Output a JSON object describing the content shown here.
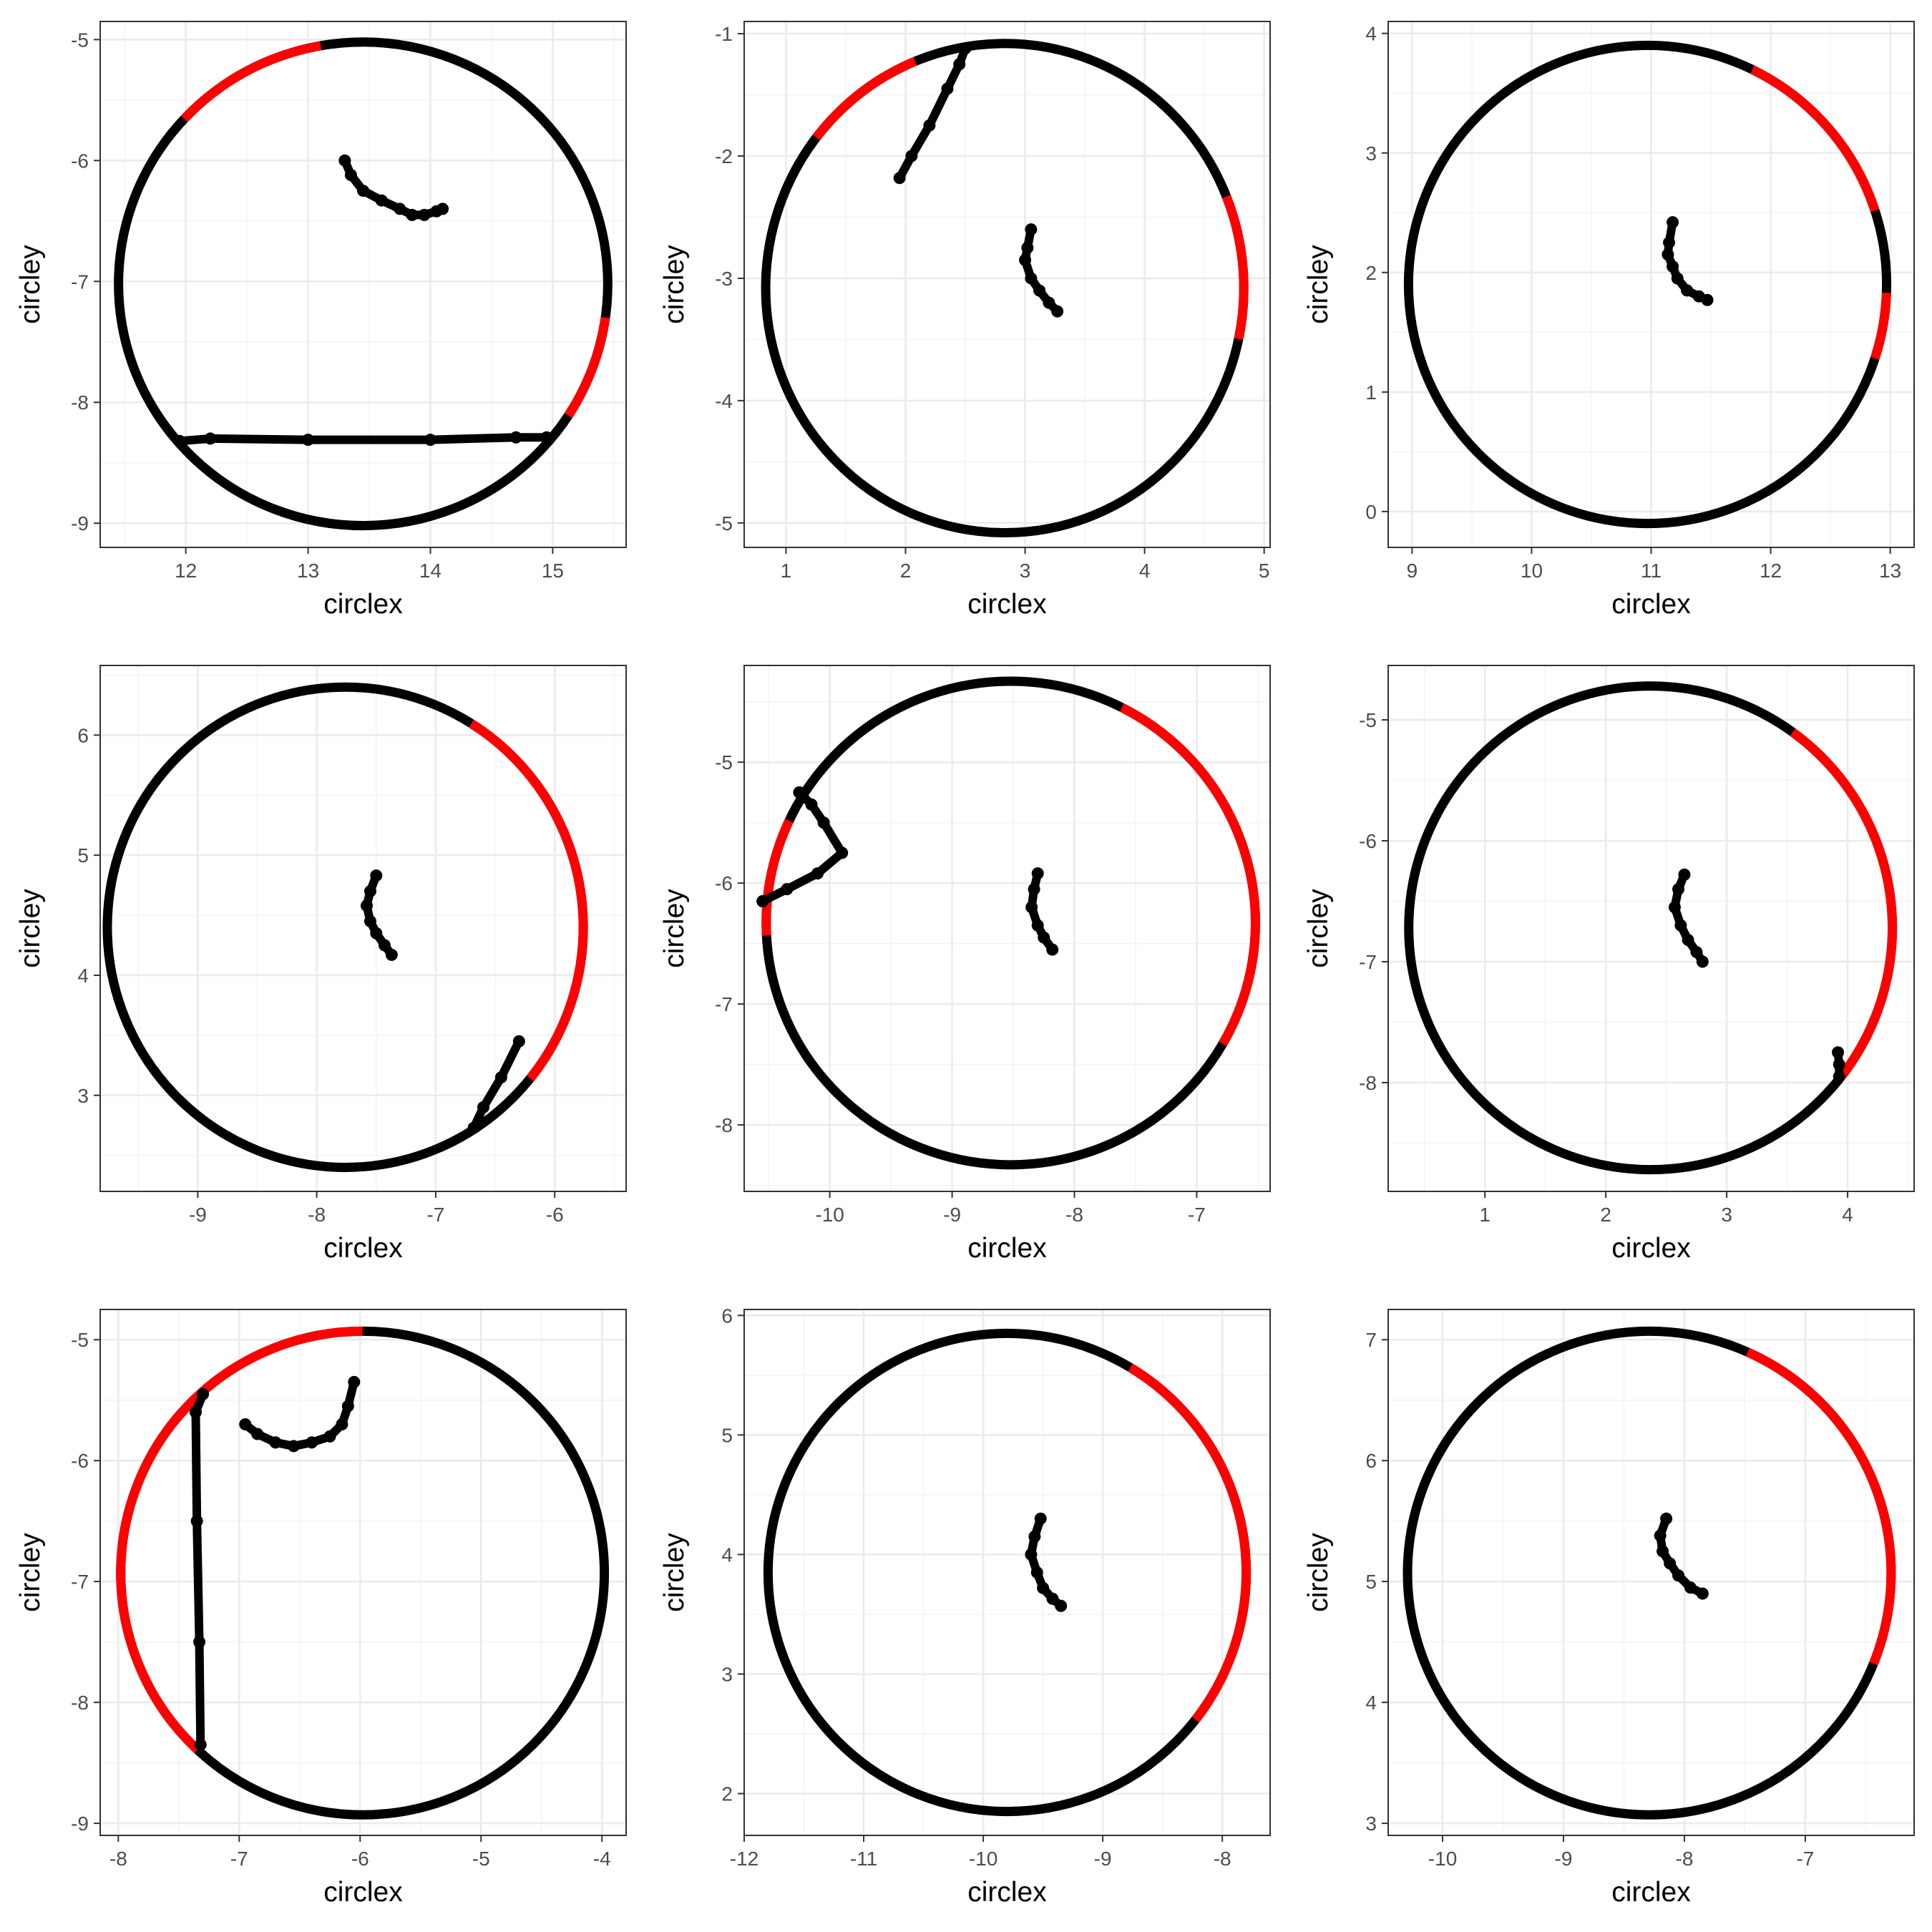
{
  "colors": {
    "arc_default": "#000000",
    "arc_highlight": "#ff0000",
    "path": "#000000",
    "grid_major": "#ebebeb",
    "grid_minor": "#f3f3f3",
    "border": "#333333"
  },
  "chart_data": [
    {
      "type": "scatter",
      "xlabel": "circlex",
      "ylabel": "circley",
      "center": [
        13.45,
        -7.02
      ],
      "radius": 2.0,
      "highlight_arc_deg": [
        [
          -33,
          -8
        ],
        [
          100,
          137
        ]
      ],
      "xlim": [
        11.3,
        15.6
      ],
      "ylim": [
        -9.2,
        -4.85
      ],
      "xticks": [
        12,
        13,
        14,
        15
      ],
      "yticks": [
        -9,
        -8,
        -7,
        -6,
        -5
      ],
      "xtick_labels": [
        "12",
        "13",
        "14",
        "15"
      ],
      "ytick_labels": [
        "-9",
        "-8",
        "-7",
        "-6",
        "-5"
      ],
      "paths": [
        [
          [
            13.3,
            -6.0
          ],
          [
            13.35,
            -6.12
          ],
          [
            13.45,
            -6.25
          ],
          [
            13.6,
            -6.33
          ],
          [
            13.75,
            -6.4
          ],
          [
            13.85,
            -6.45
          ],
          [
            13.95,
            -6.45
          ],
          [
            14.05,
            -6.42
          ],
          [
            14.1,
            -6.4
          ]
        ],
        [
          [
            11.95,
            -8.32
          ],
          [
            12.2,
            -8.3
          ],
          [
            13.0,
            -8.31
          ],
          [
            14.0,
            -8.31
          ],
          [
            14.7,
            -8.29
          ],
          [
            14.95,
            -8.29
          ]
        ]
      ]
    },
    {
      "type": "scatter",
      "xlabel": "circlex",
      "ylabel": "circley",
      "center": [
        2.83,
        -3.08
      ],
      "radius": 2.0,
      "highlight_arc_deg": [
        [
          -12,
          22
        ],
        [
          112,
          142
        ]
      ],
      "xlim": [
        0.65,
        5.05
      ],
      "ylim": [
        -5.2,
        -0.9
      ],
      "xticks": [
        1,
        2,
        3,
        4,
        5
      ],
      "yticks": [
        -5,
        -4,
        -3,
        -2,
        -1
      ],
      "xtick_labels": [
        "1",
        "2",
        "3",
        "4",
        "5"
      ],
      "ytick_labels": [
        "-5",
        "-4",
        "-3",
        "-2",
        "-1"
      ],
      "paths": [
        [
          [
            3.05,
            -2.6
          ],
          [
            3.02,
            -2.75
          ],
          [
            3.0,
            -2.85
          ],
          [
            3.05,
            -3.0
          ],
          [
            3.12,
            -3.1
          ],
          [
            3.2,
            -3.2
          ],
          [
            3.27,
            -3.27
          ]
        ],
        [
          [
            1.95,
            -2.18
          ],
          [
            2.05,
            -2.0
          ],
          [
            2.2,
            -1.75
          ],
          [
            2.35,
            -1.45
          ],
          [
            2.45,
            -1.25
          ],
          [
            2.5,
            -1.12
          ]
        ]
      ]
    },
    {
      "type": "scatter",
      "xlabel": "circlex",
      "ylabel": "circley",
      "center": [
        10.97,
        1.9
      ],
      "radius": 2.0,
      "highlight_arc_deg": [
        [
          -18,
          -2
        ],
        [
          18,
          64
        ]
      ],
      "xlim": [
        8.8,
        13.2
      ],
      "ylim": [
        -0.3,
        4.1
      ],
      "xticks": [
        9,
        10,
        11,
        12,
        13
      ],
      "yticks": [
        0,
        1,
        2,
        3,
        4
      ],
      "xtick_labels": [
        "9",
        "10",
        "11",
        "12",
        "13"
      ],
      "ytick_labels": [
        "0",
        "1",
        "2",
        "3",
        "4"
      ],
      "paths": [
        [
          [
            11.18,
            2.42
          ],
          [
            11.15,
            2.25
          ],
          [
            11.14,
            2.15
          ],
          [
            11.18,
            2.05
          ],
          [
            11.22,
            1.95
          ],
          [
            11.3,
            1.85
          ],
          [
            11.4,
            1.8
          ],
          [
            11.47,
            1.77
          ]
        ]
      ]
    },
    {
      "type": "scatter",
      "xlabel": "circlex",
      "ylabel": "circley",
      "center": [
        -7.76,
        4.4
      ],
      "radius": 2.0,
      "highlight_arc_deg": [
        [
          -39,
          -34
        ],
        [
          -34,
          58
        ]
      ],
      "xlim": [
        -9.82,
        -5.4
      ],
      "ylim": [
        2.2,
        6.58
      ],
      "xticks": [
        -9,
        -8,
        -7,
        -6
      ],
      "yticks": [
        3,
        4,
        5,
        6
      ],
      "xtick_labels": [
        "-9",
        "-8",
        "-7",
        "-6"
      ],
      "ytick_labels": [
        "3",
        "4",
        "5",
        "6"
      ],
      "paths": [
        [
          [
            -7.5,
            4.83
          ],
          [
            -7.55,
            4.7
          ],
          [
            -7.58,
            4.58
          ],
          [
            -7.55,
            4.45
          ],
          [
            -7.5,
            4.35
          ],
          [
            -7.43,
            4.25
          ],
          [
            -7.37,
            4.17
          ]
        ],
        [
          [
            -6.68,
            2.73
          ],
          [
            -6.6,
            2.9
          ],
          [
            -6.45,
            3.15
          ],
          [
            -6.3,
            3.45
          ]
        ]
      ]
    },
    {
      "type": "scatter",
      "xlabel": "circlex",
      "ylabel": "circley",
      "center": [
        -8.52,
        -6.33
      ],
      "radius": 2.0,
      "highlight_arc_deg": [
        [
          -30,
          63
        ],
        [
          155,
          183
        ]
      ],
      "xlim": [
        -10.7,
        -6.4
      ],
      "ylim": [
        -8.55,
        -4.2
      ],
      "xticks": [
        -10,
        -9,
        -8,
        -7
      ],
      "yticks": [
        -8,
        -7,
        -6,
        -5
      ],
      "xtick_labels": [
        "-10",
        "-9",
        "-8",
        "-7"
      ],
      "ytick_labels": [
        "-8",
        "-7",
        "-6",
        "-5"
      ],
      "paths": [
        [
          [
            -8.3,
            -5.92
          ],
          [
            -8.33,
            -6.05
          ],
          [
            -8.35,
            -6.2
          ],
          [
            -8.3,
            -6.35
          ],
          [
            -8.25,
            -6.45
          ],
          [
            -8.18,
            -6.55
          ]
        ],
        [
          [
            -10.55,
            -6.15
          ],
          [
            -10.35,
            -6.05
          ],
          [
            -10.1,
            -5.92
          ],
          [
            -9.9,
            -5.75
          ],
          [
            -10.05,
            -5.5
          ],
          [
            -10.15,
            -5.35
          ],
          [
            -10.25,
            -5.25
          ]
        ]
      ]
    },
    {
      "type": "scatter",
      "xlabel": "circlex",
      "ylabel": "circley",
      "center": [
        2.37,
        -6.72
      ],
      "radius": 2.0,
      "highlight_arc_deg": [
        [
          -38,
          54
        ]
      ],
      "xlim": [
        0.2,
        4.55
      ],
      "ylim": [
        -8.9,
        -4.55
      ],
      "xticks": [
        1,
        2,
        3,
        4
      ],
      "yticks": [
        -8,
        -7,
        -6,
        -5
      ],
      "xtick_labels": [
        "1",
        "2",
        "3",
        "4"
      ],
      "ytick_labels": [
        "-8",
        "-7",
        "-6",
        "-5"
      ],
      "paths": [
        [
          [
            2.65,
            -6.28
          ],
          [
            2.6,
            -6.4
          ],
          [
            2.57,
            -6.55
          ],
          [
            2.62,
            -6.7
          ],
          [
            2.68,
            -6.82
          ],
          [
            2.75,
            -6.92
          ],
          [
            2.8,
            -7.0
          ]
        ],
        [
          [
            3.92,
            -7.75
          ],
          [
            3.93,
            -7.85
          ],
          [
            3.93,
            -7.95
          ]
        ]
      ]
    },
    {
      "type": "scatter",
      "xlabel": "circlex",
      "ylabel": "circley",
      "center": [
        -5.98,
        -6.93
      ],
      "radius": 2.0,
      "highlight_arc_deg": [
        [
          90,
          135
        ],
        [
          135,
          227
        ]
      ],
      "xlim": [
        -8.15,
        -3.8
      ],
      "ylim": [
        -9.1,
        -4.75
      ],
      "xticks": [
        -8,
        -7,
        -6,
        -5,
        -4
      ],
      "yticks": [
        -9,
        -8,
        -7,
        -6,
        -5
      ],
      "xtick_labels": [
        "-8",
        "-7",
        "-6",
        "-5",
        "-4"
      ],
      "ytick_labels": [
        "-9",
        "-8",
        "-7",
        "-6",
        "-5"
      ],
      "paths": [
        [
          [
            -6.95,
            -5.7
          ],
          [
            -6.85,
            -5.78
          ],
          [
            -6.7,
            -5.85
          ],
          [
            -6.55,
            -5.88
          ],
          [
            -6.4,
            -5.85
          ],
          [
            -6.25,
            -5.8
          ],
          [
            -6.15,
            -5.7
          ],
          [
            -6.1,
            -5.55
          ],
          [
            -6.05,
            -5.35
          ]
        ],
        [
          [
            -7.32,
            -8.35
          ],
          [
            -7.33,
            -7.5
          ],
          [
            -7.35,
            -6.5
          ],
          [
            -7.36,
            -5.6
          ],
          [
            -7.3,
            -5.45
          ]
        ]
      ]
    },
    {
      "type": "scatter",
      "xlabel": "circlex",
      "ylabel": "circley",
      "center": [
        -9.8,
        3.85
      ],
      "radius": 2.0,
      "highlight_arc_deg": [
        [
          -38,
          59
        ]
      ],
      "xlim": [
        -12.0,
        -7.6
      ],
      "ylim": [
        1.65,
        6.05
      ],
      "xticks": [
        -12,
        -11,
        -10,
        -9,
        -8
      ],
      "yticks": [
        2,
        3,
        4,
        5,
        6
      ],
      "xtick_labels": [
        "-12",
        "-11",
        "-10",
        "-9",
        "-8"
      ],
      "ytick_labels": [
        "2",
        "3",
        "4",
        "5",
        "6"
      ],
      "paths": [
        [
          [
            -9.52,
            4.3
          ],
          [
            -9.57,
            4.15
          ],
          [
            -9.6,
            4.0
          ],
          [
            -9.55,
            3.85
          ],
          [
            -9.5,
            3.72
          ],
          [
            -9.42,
            3.63
          ],
          [
            -9.35,
            3.57
          ]
        ]
      ]
    },
    {
      "type": "scatter",
      "xlabel": "circlex",
      "ylabel": "circley",
      "center": [
        -8.29,
        5.07
      ],
      "radius": 2.0,
      "highlight_arc_deg": [
        [
          -22,
          0
        ],
        [
          0,
          66
        ]
      ],
      "xlim": [
        -10.45,
        -6.1
      ],
      "ylim": [
        2.9,
        7.25
      ],
      "xticks": [
        -10,
        -9,
        -8,
        -7
      ],
      "yticks": [
        3,
        4,
        5,
        6,
        7
      ],
      "xtick_labels": [
        "-10",
        "-9",
        "-8",
        "-7"
      ],
      "ytick_labels": [
        "3",
        "4",
        "5",
        "6",
        "7"
      ],
      "paths": [
        [
          [
            -8.15,
            5.52
          ],
          [
            -8.2,
            5.38
          ],
          [
            -8.18,
            5.25
          ],
          [
            -8.12,
            5.15
          ],
          [
            -8.05,
            5.05
          ],
          [
            -7.95,
            4.95
          ],
          [
            -7.85,
            4.9
          ]
        ]
      ]
    }
  ]
}
